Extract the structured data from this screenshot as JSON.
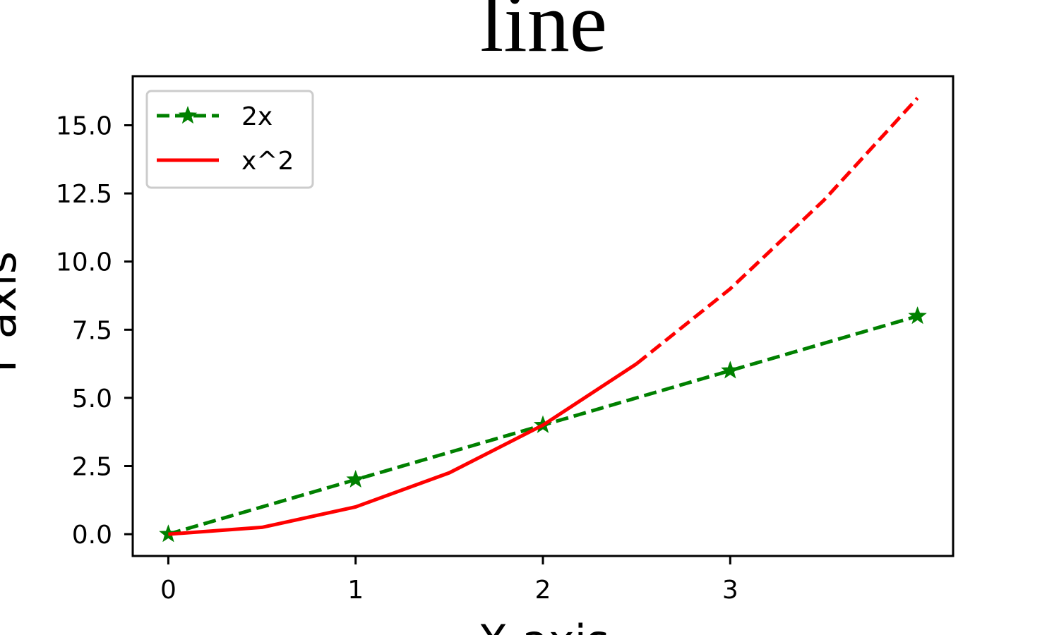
{
  "chart_data": {
    "type": "line",
    "title": "line",
    "xlabel": "X axis",
    "ylabel": "Y axis",
    "xlim": [
      -0.19,
      4.19
    ],
    "ylim": [
      -0.8,
      16.8
    ],
    "x_ticks": [
      0,
      1,
      2,
      3
    ],
    "x_tick_labels": [
      "0",
      "1",
      "2",
      "3"
    ],
    "y_ticks": [
      0,
      2.5,
      5,
      7.5,
      10,
      12.5,
      15
    ],
    "y_tick_labels": [
      "0.0",
      "2.5",
      "5.0",
      "7.5",
      "10.0",
      "12.5",
      "15.0"
    ],
    "grid": false,
    "legend_position": "upper-left",
    "series": [
      {
        "name": "2x",
        "color": "#008000",
        "line_style": "dashed",
        "marker": "star",
        "x": [
          0,
          1,
          2,
          3,
          4
        ],
        "y": [
          0,
          2,
          4,
          6,
          8
        ]
      },
      {
        "name": "x^2",
        "color": "#ff0000",
        "line_style": "solid-then-dashed",
        "marker": "none",
        "x": [
          0,
          0.5,
          1,
          1.5,
          2,
          2.5,
          3,
          3.5,
          4
        ],
        "y": [
          0,
          0.25,
          1,
          2.25,
          4,
          6.25,
          9,
          12.25,
          16
        ],
        "solid_until_x": 2.5
      }
    ]
  }
}
